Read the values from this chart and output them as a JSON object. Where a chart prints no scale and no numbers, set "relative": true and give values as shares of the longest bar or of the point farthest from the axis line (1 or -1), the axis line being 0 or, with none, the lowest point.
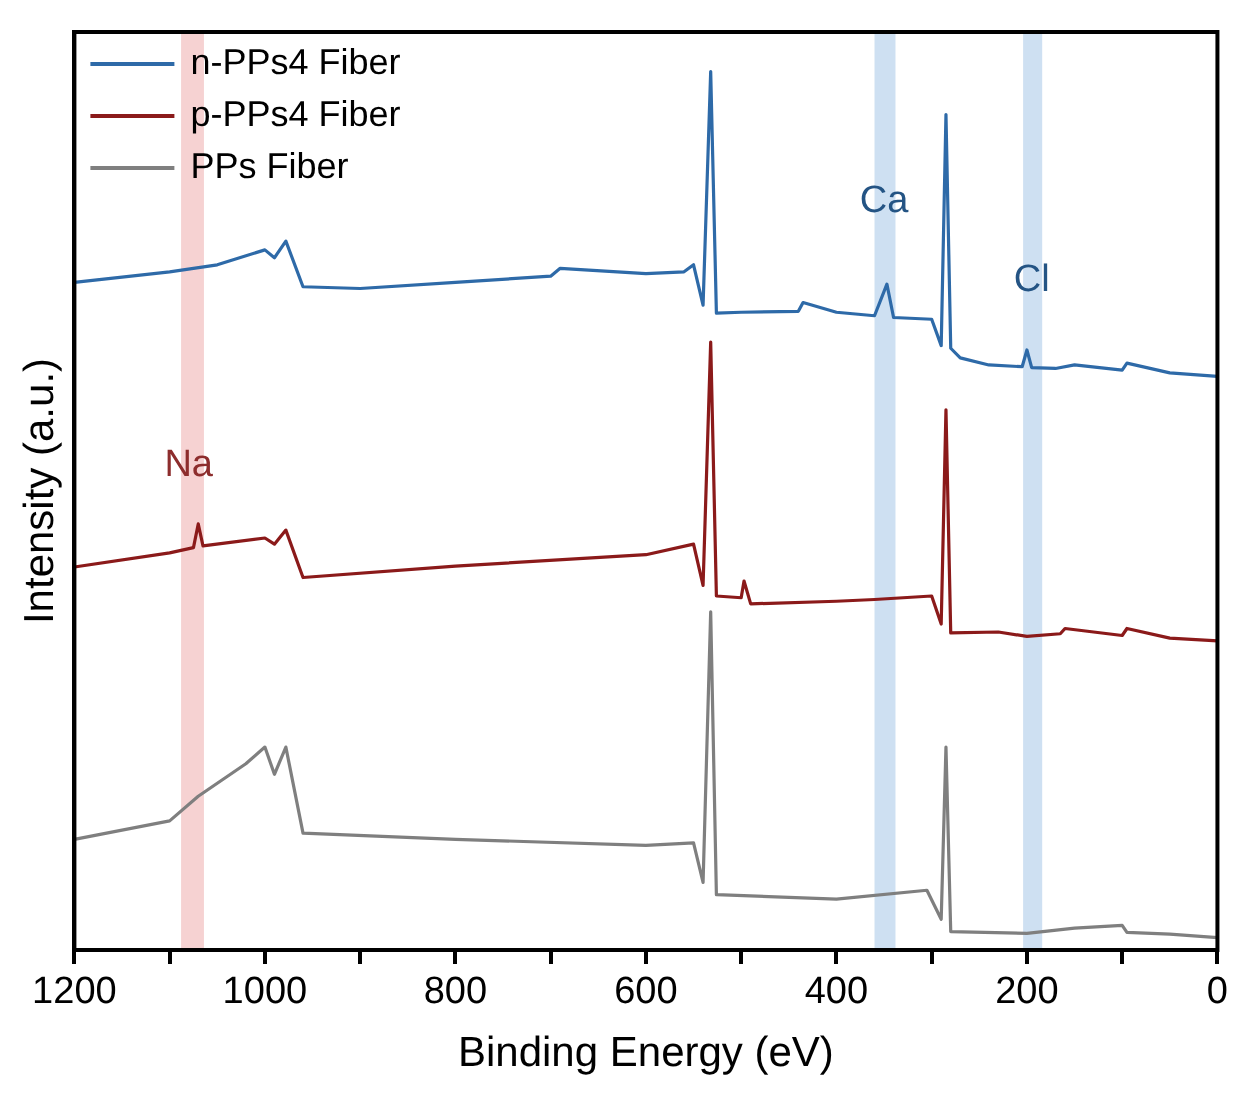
{
  "chart_data": {
    "type": "line",
    "xlabel": "Binding Energy (eV)",
    "ylabel": "Intensity (a.u.)",
    "relative": true,
    "xlim": [
      1200,
      0
    ],
    "xticks": [
      1200,
      {
        "value": 1100,
        "label": null
      },
      1000,
      {
        "value": 900,
        "label": null
      },
      800,
      {
        "value": 700,
        "label": null
      },
      600,
      {
        "value": 500,
        "label": null
      },
      400,
      {
        "value": 300,
        "label": null
      },
      200,
      {
        "value": 100,
        "label": null
      },
      0
    ],
    "tick_labels": "x",
    "grid": false,
    "legend": "top left",
    "marker": "none",
    "line_style": "solid",
    "bands": [
      {
        "axis": "x",
        "from": 1088,
        "to": 1064,
        "color": "#f4caca"
      },
      {
        "axis": "x",
        "from": 360,
        "to": 338,
        "color": "#c6dbf0"
      },
      {
        "axis": "x",
        "from": 204,
        "to": 184,
        "color": "#c6dbf0"
      }
    ],
    "annotations": [
      {
        "text": "Na",
        "x": 1080,
        "y": 0.53
      },
      {
        "text": "Ca",
        "x": 350,
        "y": 0.83
      },
      {
        "text": "Cl",
        "x": 195,
        "y": 0.74
      }
    ],
    "series": [
      {
        "name": "n-PPs4 Fiber",
        "color": "#2e6aa8",
        "x": [
          1200,
          1100,
          1050,
          1000,
          990,
          978,
          960,
          900,
          800,
          700,
          690,
          600,
          560,
          550,
          540,
          532,
          526,
          500,
          440,
          435,
          400,
          360,
          347,
          340,
          300,
          290,
          285,
          280,
          270,
          240,
          205,
          200,
          195,
          170,
          150,
          100,
          95,
          50,
          0
        ],
        "values": [
          0.76,
          0.772,
          0.78,
          0.797,
          0.788,
          0.807,
          0.755,
          0.753,
          0.76,
          0.767,
          0.776,
          0.77,
          0.772,
          0.78,
          0.734,
          1.0,
          0.725,
          0.726,
          0.727,
          0.737,
          0.726,
          0.722,
          0.758,
          0.72,
          0.718,
          0.688,
          0.951,
          0.685,
          0.674,
          0.666,
          0.664,
          0.683,
          0.663,
          0.662,
          0.666,
          0.66,
          0.668,
          0.657,
          0.653
        ]
      },
      {
        "name": "p-PPs4 Fiber",
        "color": "#8b1a1a",
        "x": [
          1200,
          1100,
          1075,
          1070,
          1065,
          1000,
          990,
          978,
          960,
          800,
          600,
          550,
          540,
          532,
          526,
          500,
          497,
          490,
          400,
          360,
          300,
          290,
          285,
          280,
          230,
          200,
          165,
          160,
          100,
          95,
          50,
          0
        ],
        "values": [
          0.436,
          0.452,
          0.458,
          0.485,
          0.46,
          0.469,
          0.462,
          0.478,
          0.424,
          0.437,
          0.45,
          0.462,
          0.415,
          0.692,
          0.403,
          0.401,
          0.42,
          0.394,
          0.397,
          0.399,
          0.403,
          0.371,
          0.615,
          0.361,
          0.362,
          0.357,
          0.36,
          0.366,
          0.358,
          0.366,
          0.355,
          0.352
        ]
      },
      {
        "name": "PPs Fiber",
        "color": "#7f7f7f",
        "x": [
          1200,
          1100,
          1070,
          1020,
          1000,
          990,
          978,
          960,
          800,
          600,
          550,
          540,
          532,
          526,
          400,
          305,
          290,
          285,
          280,
          200,
          150,
          100,
          95,
          50,
          0
        ],
        "values": [
          0.126,
          0.147,
          0.175,
          0.212,
          0.231,
          0.2,
          0.231,
          0.133,
          0.126,
          0.119,
          0.122,
          0.077,
          0.385,
          0.063,
          0.058,
          0.068,
          0.035,
          0.231,
          0.021,
          0.019,
          0.025,
          0.028,
          0.02,
          0.018,
          0.014
        ]
      }
    ]
  }
}
